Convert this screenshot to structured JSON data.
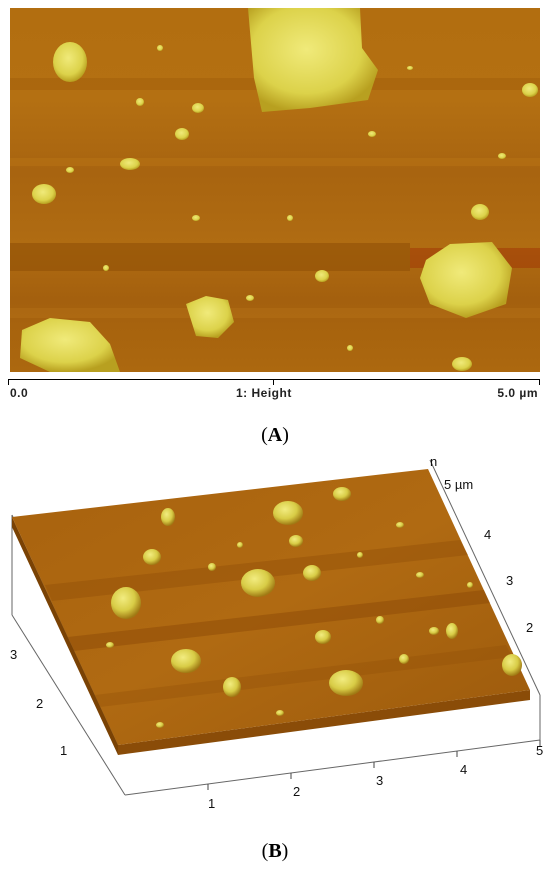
{
  "panelA": {
    "scale_start": "0.0",
    "scale_channel": "1: Height",
    "scale_end": "5.0 µm"
  },
  "captionA": {
    "open": "(",
    "letter": "A",
    "close": ")"
  },
  "panelB": {
    "z_unit_fragment": "n",
    "right_axis_ticks": [
      "5 µm",
      "4",
      "3",
      "2"
    ],
    "left_axis_ticks": [
      "3",
      "2",
      "1"
    ],
    "bottom_axis_ticks": [
      "1",
      "2",
      "3",
      "4",
      "5"
    ]
  },
  "captionB": {
    "open": "(",
    "letter": "B",
    "close": ")"
  },
  "colors": {
    "surface_dark": "#8a4e08",
    "surface_mid": "#b87410",
    "particle": "#e2dc50",
    "particle_bright": "#f0ea78"
  }
}
